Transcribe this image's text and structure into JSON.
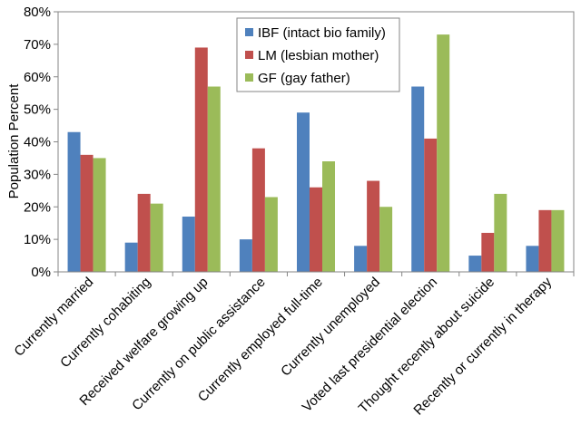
{
  "chart_data": {
    "type": "bar",
    "title": "",
    "xlabel": "",
    "ylabel": "Population Percent",
    "ylim": [
      0,
      80
    ],
    "yticks": [
      "0%",
      "10%",
      "20%",
      "30%",
      "40%",
      "50%",
      "60%",
      "70%",
      "80%"
    ],
    "y_unit": "percent",
    "grid": false,
    "legend_position": "top-center",
    "categories": [
      "Currently married",
      "Currently cohabiting",
      "Received welfare growing up",
      "Currently on public assistance",
      "Currently employed full-time",
      "Currently unemployed",
      "Voted last presidential election",
      "Thought recently about suicide",
      "Recently or currently in therapy"
    ],
    "series": [
      {
        "name": "IBF (intact bio family)",
        "color": "#4F81BD",
        "values": [
          43,
          9,
          17,
          10,
          49,
          8,
          57,
          5,
          8
        ]
      },
      {
        "name": "LM (lesbian mother)",
        "color": "#C0504D",
        "values": [
          36,
          24,
          69,
          38,
          26,
          28,
          41,
          12,
          19
        ]
      },
      {
        "name": "GF (gay father)",
        "color": "#9BBB59",
        "values": [
          35,
          21,
          57,
          23,
          34,
          20,
          73,
          24,
          19
        ]
      }
    ]
  }
}
